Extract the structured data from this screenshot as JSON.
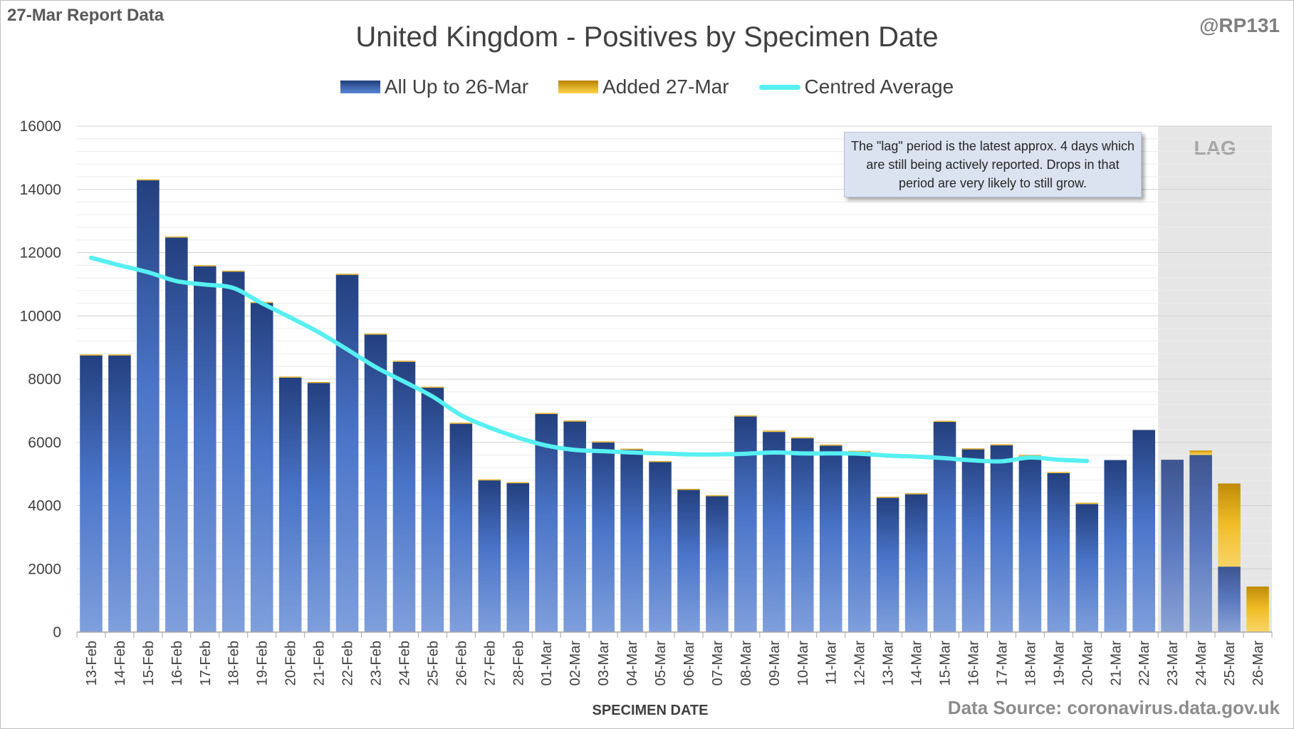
{
  "report_label": "27-Mar Report Data",
  "author_handle": "@RP131",
  "source_note": "Data Source: coronavirus.data.gov.uk",
  "lag_note": "The \"lag\" period is the latest approx. 4 days which are still being actively reported. Drops in that period are very likely to still grow.",
  "colors": {
    "primary_bar": "#3b5faa",
    "added_bar": "#f0b71c",
    "average_line": "#56f0f2",
    "lag_shade": "#e6e6e6",
    "grid": "#e2e2e2"
  },
  "chart_data": {
    "type": "bar",
    "stacked": true,
    "title": "United Kingdom - Positives by Specimen Date",
    "xlabel": "SPECIMEN DATE",
    "ylabel": "",
    "ylim": [
      0,
      16000
    ],
    "yticks": [
      0,
      2000,
      4000,
      6000,
      8000,
      10000,
      12000,
      14000,
      16000
    ],
    "legend_position": "top",
    "grid": true,
    "categories": [
      "13-Feb",
      "14-Feb",
      "15-Feb",
      "16-Feb",
      "17-Feb",
      "18-Feb",
      "19-Feb",
      "20-Feb",
      "21-Feb",
      "22-Feb",
      "23-Feb",
      "24-Feb",
      "25-Feb",
      "26-Feb",
      "27-Feb",
      "28-Feb",
      "01-Mar",
      "02-Mar",
      "03-Mar",
      "04-Mar",
      "05-Mar",
      "06-Mar",
      "07-Mar",
      "08-Mar",
      "09-Mar",
      "10-Mar",
      "11-Mar",
      "12-Mar",
      "13-Mar",
      "14-Mar",
      "15-Mar",
      "16-Mar",
      "17-Mar",
      "18-Mar",
      "19-Mar",
      "20-Mar",
      "21-Mar",
      "22-Mar",
      "23-Mar",
      "24-Mar",
      "25-Mar",
      "26-Mar"
    ],
    "series": [
      {
        "name": "All Up to 26-Mar",
        "kind": "bar",
        "values": [
          8760,
          8760,
          14290,
          12480,
          11580,
          11410,
          10420,
          8060,
          7890,
          11310,
          9430,
          8560,
          7740,
          6600,
          4820,
          4720,
          6910,
          6670,
          6010,
          5780,
          5390,
          4510,
          4310,
          6830,
          6330,
          6140,
          5900,
          5700,
          4260,
          4370,
          6650,
          5790,
          5910,
          5560,
          5030,
          4050,
          5440,
          6390,
          5450,
          5600,
          2070,
          0
        ]
      },
      {
        "name": "Added 27-Mar",
        "kind": "bar",
        "values": [
          20,
          20,
          30,
          30,
          20,
          20,
          20,
          20,
          20,
          20,
          10,
          20,
          20,
          20,
          10,
          20,
          20,
          20,
          20,
          20,
          20,
          20,
          20,
          20,
          40,
          20,
          30,
          30,
          20,
          20,
          30,
          20,
          30,
          40,
          30,
          40,
          0,
          0,
          0,
          140,
          2630,
          1440
        ]
      },
      {
        "name": "Centred Average",
        "kind": "line",
        "values": [
          11840,
          11600,
          11380,
          11100,
          10990,
          10880,
          10400,
          9950,
          9480,
          8940,
          8380,
          7920,
          7450,
          6860,
          6470,
          6150,
          5900,
          5760,
          5720,
          5680,
          5650,
          5620,
          5620,
          5640,
          5680,
          5650,
          5650,
          5640,
          5580,
          5550,
          5500,
          5430,
          5400,
          5520,
          5450,
          5410,
          null,
          null,
          null,
          null,
          null,
          null
        ]
      }
    ],
    "lag_region": {
      "label": "LAG",
      "from": "23-Mar",
      "to": "26-Mar"
    }
  }
}
